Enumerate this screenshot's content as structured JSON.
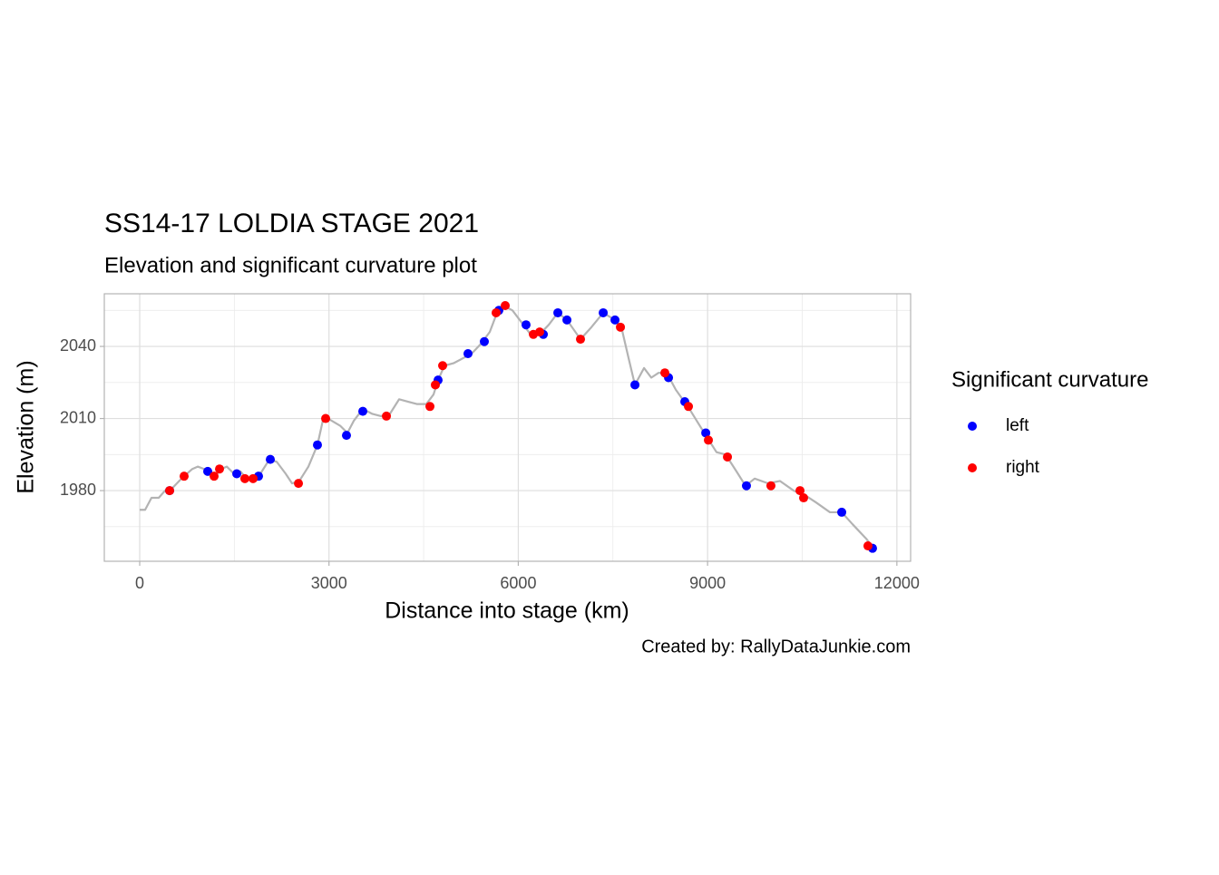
{
  "chart_data": {
    "type": "line",
    "title": "SS14-17 LOLDIA STAGE 2021",
    "subtitle": "Elevation and significant curvature plot",
    "x_label": "Distance into stage (km)",
    "y_label": "Elevation (m)",
    "caption": "Created by: RallyDataJunkie.com",
    "color": "#b3b3b3",
    "x": [
      0,
      86,
      187,
      302,
      402,
      517,
      661,
      834,
      920,
      1020,
      1092,
      1193,
      1294,
      1380,
      1495,
      1596,
      1696,
      1811,
      1912,
      2056,
      2171,
      2314,
      2415,
      2530,
      2674,
      2817,
      2918,
      3047,
      3177,
      3292,
      3392,
      3536,
      3680,
      3824,
      3967,
      4111,
      4255,
      4399,
      4542,
      4657,
      4729,
      4830,
      4973,
      5117,
      5261,
      5405,
      5548,
      5663,
      5764,
      5908,
      6052,
      6196,
      6339,
      6483,
      6627,
      6771,
      6986,
      7159,
      7346,
      7533,
      7634,
      7749,
      7849,
      7993,
      8108,
      8223,
      8352,
      8496,
      8712,
      8971,
      9142,
      9286,
      9458,
      9602,
      9746,
      9961,
      10148,
      10364,
      10551,
      10723,
      10939,
      11126,
      11298,
      11514,
      11629
    ],
    "values": [
      1972,
      1972,
      1977,
      1977,
      1980,
      1981,
      1985,
      1989,
      1990,
      1989,
      1989,
      1986,
      1989,
      1990,
      1987,
      1988,
      1985,
      1986,
      1987,
      1993,
      1992,
      1987,
      1983,
      1984,
      1990,
      1999,
      2011,
      2009,
      2007,
      2004,
      2009,
      2014,
      2012,
      2011,
      2012,
      2018,
      2017,
      2016,
      2016,
      2020,
      2026,
      2032,
      2033,
      2035,
      2037,
      2041,
      2046,
      2054,
      2057,
      2055,
      2050,
      2045,
      2045,
      2049,
      2054,
      2051,
      2043,
      2048,
      2054,
      2051,
      2048,
      2035,
      2024,
      2031,
      2027,
      2029,
      2029,
      2022,
      2014,
      2003,
      1996,
      1995,
      1988,
      1982,
      1985,
      1983,
      1984,
      1980,
      1978,
      1975,
      1971,
      1971,
      1966,
      1960,
      1956
    ],
    "legend_title": "Significant curvature",
    "legend_position": "right",
    "series": [
      {
        "name": "left",
        "color": "#0000ff",
        "x": [
          474,
          1078,
          1538,
          1883,
          2070,
          2817,
          3277,
          3536,
          4729,
          5203,
          5462,
          5692,
          6123,
          6397,
          6627,
          6771,
          7346,
          7533,
          7849,
          8381,
          8639,
          8971,
          9616,
          11126,
          11614
        ],
        "values": [
          1980,
          1988,
          1987,
          1986,
          1993,
          1999,
          2003,
          2013,
          2026,
          2037,
          2042,
          2055,
          2049,
          2045,
          2054,
          2051,
          2054,
          2051,
          2024,
          2027,
          2017,
          2004,
          1982,
          1971,
          1956
        ]
      },
      {
        "name": "right",
        "color": "#ff0000",
        "x": [
          474,
          704,
          1179,
          1265,
          1667,
          1797,
          2516,
          2947,
          3910,
          4600,
          4686,
          4801,
          5649,
          5793,
          6239,
          6339,
          6986,
          7619,
          8323,
          8697,
          9013,
          9315,
          10004,
          10465,
          10522,
          11542
        ],
        "values": [
          1980,
          1986,
          1986,
          1989,
          1985,
          1985,
          1983,
          2010,
          2011,
          2015,
          2024,
          2032,
          2054,
          2057,
          2045,
          2046,
          2043,
          2048,
          2029,
          2015,
          2001,
          1994,
          1982,
          1980,
          1977,
          1957
        ]
      }
    ],
    "xlim": [
      -561,
      12218
    ],
    "ylim": [
      1950.6,
      2061.9
    ],
    "xticks": [
      0,
      3000,
      6000,
      9000,
      12000
    ],
    "yticks": [
      1980,
      2010,
      2040
    ],
    "xminor": [
      1500,
      4500,
      7500,
      10500
    ],
    "yminor": [
      1965,
      1995,
      2025,
      2055
    ],
    "grid": true
  }
}
